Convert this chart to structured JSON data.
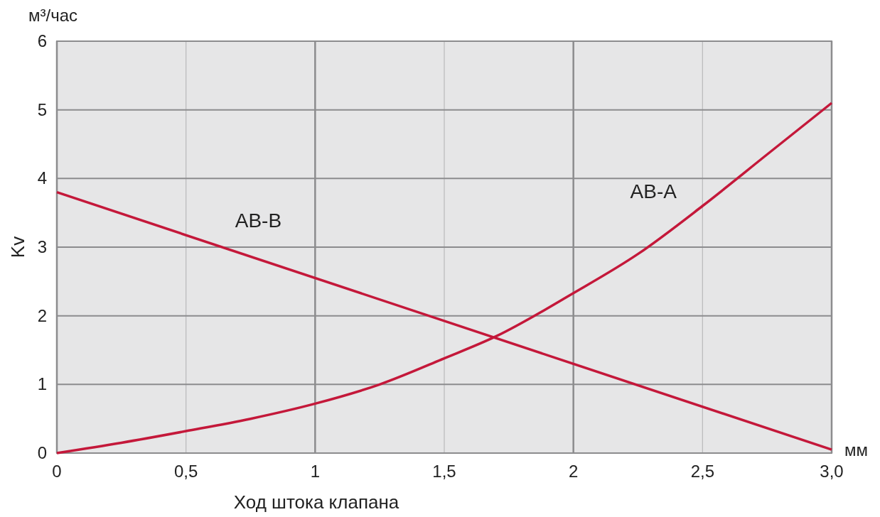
{
  "chart_data": {
    "type": "line",
    "xlabel": "Ход штока клапана",
    "ylabel": "Kv",
    "annotations": [
      "м³/час",
      "мм"
    ],
    "xlim": [
      0,
      3
    ],
    "ylim": [
      0,
      6
    ],
    "xticks": [
      0,
      {
        "value": 0.5,
        "label": "0,5"
      },
      1,
      {
        "value": 1.5,
        "label": "1,5"
      },
      2,
      {
        "value": 2.5,
        "label": "2,5"
      },
      {
        "value": 3,
        "label": "3,0"
      }
    ],
    "yticks": [
      0,
      1,
      2,
      3,
      4,
      5,
      6
    ],
    "grid": true,
    "marker": "none",
    "line_style": "solid",
    "series": [
      {
        "name": "AB-B",
        "color": "#c4183a",
        "x": [
          0,
          3
        ],
        "values": [
          3.8,
          0.05
        ]
      },
      {
        "name": "AB-A",
        "color": "#c4183a",
        "x": [
          0,
          0.25,
          0.5,
          0.75,
          1,
          1.25,
          1.5,
          1.7,
          2,
          2.25,
          2.5,
          2.75,
          3
        ],
        "values": [
          0,
          0.15,
          0.32,
          0.5,
          0.72,
          1.0,
          1.38,
          1.7,
          2.33,
          2.9,
          3.6,
          4.35,
          5.1
        ]
      }
    ]
  }
}
